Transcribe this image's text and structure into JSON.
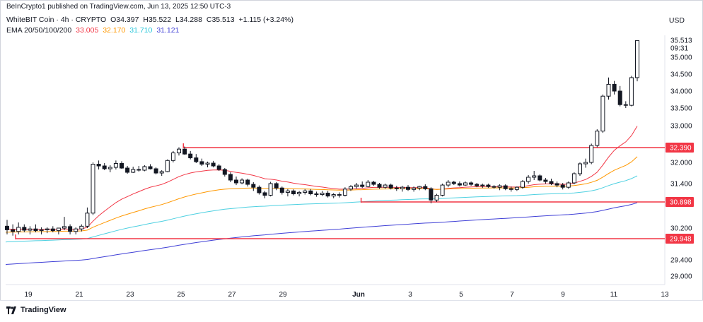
{
  "publisher_line": "BeInCrypto1 published on TradingView.com, Jun 13, 2025 12:50 UTC-3",
  "symbol": {
    "name": "WhiteBIT Coin · 4h · CRYPTO",
    "open": "O34.397",
    "high": "H35.522",
    "low": "L34.288",
    "close": "C35.513",
    "change": "+1.115 (+3.24%)"
  },
  "ema": {
    "label": "EMA 20/50/100/200",
    "values": [
      "33.005",
      "32.170",
      "31.710",
      "31.121"
    ],
    "colors": [
      "#f23645",
      "#ff9800",
      "#4dd0e1",
      "#3f3fd6"
    ]
  },
  "currency": "USD",
  "footer_brand": "TradingView",
  "chart_data": {
    "type": "candlestick",
    "y_axis_ticks": [
      "35.000",
      "34.500",
      "34.000",
      "33.500",
      "33.000",
      "32.000",
      "31.400",
      "30.200",
      "29.400",
      "29.000"
    ],
    "x_axis_ticks": [
      {
        "label": "19",
        "t": 0.5
      },
      {
        "label": "21",
        "t": 2.5
      },
      {
        "label": "23",
        "t": 4.5
      },
      {
        "label": "25",
        "t": 6.5
      },
      {
        "label": "27",
        "t": 8.5
      },
      {
        "label": "29",
        "t": 10.5
      },
      {
        "label": "Jun",
        "t": 13.5
      },
      {
        "label": "3",
        "t": 15.5
      },
      {
        "label": "5",
        "t": 17.5
      },
      {
        "label": "7",
        "t": 19.5
      },
      {
        "label": "9",
        "t": 21.5
      },
      {
        "label": "11",
        "t": 23.5
      },
      {
        "label": "13",
        "t": 25.5
      }
    ],
    "last_price": {
      "value": "35.513",
      "countdown": "09:31"
    },
    "horizontal_levels": [
      {
        "value": 32.39,
        "label": "32.390",
        "t_start": 7.45
      },
      {
        "value": 30.898,
        "label": "30.898",
        "t_start": 14.5
      },
      {
        "value": 29.948,
        "label": "29.948",
        "t_start": 0.0
      }
    ],
    "candles": [
      {
        "o": 30.25,
        "h": 30.42,
        "l": 30.05,
        "c": 30.16
      },
      {
        "o": 30.16,
        "h": 30.3,
        "l": 30.02,
        "c": 30.12
      },
      {
        "o": 30.12,
        "h": 30.35,
        "l": 30.05,
        "c": 30.22
      },
      {
        "o": 30.22,
        "h": 30.3,
        "l": 30.1,
        "c": 30.15
      },
      {
        "o": 30.15,
        "h": 30.25,
        "l": 30.05,
        "c": 30.18
      },
      {
        "o": 30.18,
        "h": 30.3,
        "l": 30.1,
        "c": 30.14
      },
      {
        "o": 30.14,
        "h": 30.22,
        "l": 30.05,
        "c": 30.16
      },
      {
        "o": 30.16,
        "h": 30.22,
        "l": 30.08,
        "c": 30.18
      },
      {
        "o": 30.18,
        "h": 30.25,
        "l": 30.1,
        "c": 30.14
      },
      {
        "o": 30.14,
        "h": 30.2,
        "l": 30.05,
        "c": 30.2
      },
      {
        "o": 30.2,
        "h": 30.5,
        "l": 30.15,
        "c": 30.24
      },
      {
        "o": 30.24,
        "h": 30.3,
        "l": 30.05,
        "c": 30.12
      },
      {
        "o": 30.12,
        "h": 30.22,
        "l": 30.05,
        "c": 30.18
      },
      {
        "o": 30.18,
        "h": 30.3,
        "l": 30.12,
        "c": 30.25
      },
      {
        "o": 30.25,
        "h": 30.75,
        "l": 30.2,
        "c": 30.6
      },
      {
        "o": 30.6,
        "h": 32.0,
        "l": 30.55,
        "c": 31.95
      },
      {
        "o": 31.95,
        "h": 32.05,
        "l": 31.8,
        "c": 31.9
      },
      {
        "o": 31.9,
        "h": 31.98,
        "l": 31.78,
        "c": 31.82
      },
      {
        "o": 31.82,
        "h": 31.92,
        "l": 31.72,
        "c": 31.86
      },
      {
        "o": 31.86,
        "h": 32.05,
        "l": 31.8,
        "c": 31.97
      },
      {
        "o": 31.97,
        "h": 32.03,
        "l": 31.82,
        "c": 31.84
      },
      {
        "o": 31.84,
        "h": 31.9,
        "l": 31.68,
        "c": 31.72
      },
      {
        "o": 31.72,
        "h": 31.88,
        "l": 31.7,
        "c": 31.8
      },
      {
        "o": 31.8,
        "h": 31.9,
        "l": 31.74,
        "c": 31.78
      },
      {
        "o": 31.78,
        "h": 31.92,
        "l": 31.75,
        "c": 31.88
      },
      {
        "o": 31.88,
        "h": 31.95,
        "l": 31.8,
        "c": 31.82
      },
      {
        "o": 31.82,
        "h": 31.86,
        "l": 31.66,
        "c": 31.7
      },
      {
        "o": 31.7,
        "h": 31.78,
        "l": 31.62,
        "c": 31.74
      },
      {
        "o": 31.74,
        "h": 32.08,
        "l": 31.72,
        "c": 32.05
      },
      {
        "o": 32.05,
        "h": 32.3,
        "l": 32.0,
        "c": 32.25
      },
      {
        "o": 32.25,
        "h": 32.4,
        "l": 32.18,
        "c": 32.35
      },
      {
        "o": 32.35,
        "h": 32.42,
        "l": 32.2,
        "c": 32.22
      },
      {
        "o": 32.22,
        "h": 32.3,
        "l": 32.08,
        "c": 32.12
      },
      {
        "o": 32.12,
        "h": 32.22,
        "l": 31.98,
        "c": 32.02
      },
      {
        "o": 32.02,
        "h": 32.1,
        "l": 31.9,
        "c": 31.95
      },
      {
        "o": 31.95,
        "h": 32.02,
        "l": 31.86,
        "c": 31.98
      },
      {
        "o": 31.98,
        "h": 32.04,
        "l": 31.86,
        "c": 31.9
      },
      {
        "o": 31.9,
        "h": 31.95,
        "l": 31.76,
        "c": 31.8
      },
      {
        "o": 31.8,
        "h": 31.84,
        "l": 31.6,
        "c": 31.66
      },
      {
        "o": 31.66,
        "h": 31.72,
        "l": 31.44,
        "c": 31.5
      },
      {
        "o": 31.5,
        "h": 31.6,
        "l": 31.36,
        "c": 31.42
      },
      {
        "o": 31.42,
        "h": 31.55,
        "l": 31.38,
        "c": 31.5
      },
      {
        "o": 31.5,
        "h": 31.54,
        "l": 31.32,
        "c": 31.38
      },
      {
        "o": 31.38,
        "h": 31.44,
        "l": 31.2,
        "c": 31.3
      },
      {
        "o": 31.3,
        "h": 31.35,
        "l": 31.1,
        "c": 31.15
      },
      {
        "o": 31.15,
        "h": 31.2,
        "l": 31.0,
        "c": 31.08
      },
      {
        "o": 31.08,
        "h": 31.45,
        "l": 31.05,
        "c": 31.4
      },
      {
        "o": 31.4,
        "h": 31.44,
        "l": 31.22,
        "c": 31.28
      },
      {
        "o": 31.28,
        "h": 31.32,
        "l": 31.1,
        "c": 31.16
      },
      {
        "o": 31.16,
        "h": 31.25,
        "l": 31.05,
        "c": 31.2
      },
      {
        "o": 31.2,
        "h": 31.24,
        "l": 31.08,
        "c": 31.12
      },
      {
        "o": 31.12,
        "h": 31.2,
        "l": 31.05,
        "c": 31.16
      },
      {
        "o": 31.16,
        "h": 31.25,
        "l": 31.1,
        "c": 31.2
      },
      {
        "o": 31.2,
        "h": 31.25,
        "l": 31.08,
        "c": 31.12
      },
      {
        "o": 31.12,
        "h": 31.18,
        "l": 31.04,
        "c": 31.1
      },
      {
        "o": 31.1,
        "h": 31.2,
        "l": 31.06,
        "c": 31.14
      },
      {
        "o": 31.14,
        "h": 31.2,
        "l": 31.02,
        "c": 31.06
      },
      {
        "o": 31.06,
        "h": 31.14,
        "l": 31.0,
        "c": 31.1
      },
      {
        "o": 31.1,
        "h": 31.16,
        "l": 31.02,
        "c": 31.08
      },
      {
        "o": 31.08,
        "h": 31.3,
        "l": 31.05,
        "c": 31.25
      },
      {
        "o": 31.25,
        "h": 31.36,
        "l": 31.2,
        "c": 31.32
      },
      {
        "o": 31.32,
        "h": 31.42,
        "l": 31.26,
        "c": 31.36
      },
      {
        "o": 31.36,
        "h": 31.46,
        "l": 31.28,
        "c": 31.32
      },
      {
        "o": 31.32,
        "h": 31.5,
        "l": 31.3,
        "c": 31.44
      },
      {
        "o": 31.44,
        "h": 31.48,
        "l": 31.34,
        "c": 31.38
      },
      {
        "o": 31.38,
        "h": 31.42,
        "l": 31.26,
        "c": 31.3
      },
      {
        "o": 31.3,
        "h": 31.4,
        "l": 31.26,
        "c": 31.36
      },
      {
        "o": 31.36,
        "h": 31.4,
        "l": 31.24,
        "c": 31.28
      },
      {
        "o": 31.28,
        "h": 31.34,
        "l": 31.2,
        "c": 31.26
      },
      {
        "o": 31.26,
        "h": 31.34,
        "l": 31.18,
        "c": 31.3
      },
      {
        "o": 31.3,
        "h": 31.36,
        "l": 31.2,
        "c": 31.24
      },
      {
        "o": 31.24,
        "h": 31.32,
        "l": 31.18,
        "c": 31.28
      },
      {
        "o": 31.28,
        "h": 31.34,
        "l": 31.22,
        "c": 31.32
      },
      {
        "o": 31.32,
        "h": 31.38,
        "l": 31.22,
        "c": 31.26
      },
      {
        "o": 31.26,
        "h": 31.3,
        "l": 30.86,
        "c": 30.95
      },
      {
        "o": 30.95,
        "h": 31.12,
        "l": 30.9,
        "c": 31.08
      },
      {
        "o": 31.08,
        "h": 31.4,
        "l": 31.05,
        "c": 31.36
      },
      {
        "o": 31.36,
        "h": 31.5,
        "l": 31.3,
        "c": 31.44
      },
      {
        "o": 31.44,
        "h": 31.48,
        "l": 31.36,
        "c": 31.4
      },
      {
        "o": 31.4,
        "h": 31.46,
        "l": 31.32,
        "c": 31.36
      },
      {
        "o": 31.36,
        "h": 31.46,
        "l": 31.34,
        "c": 31.42
      },
      {
        "o": 31.42,
        "h": 31.46,
        "l": 31.34,
        "c": 31.38
      },
      {
        "o": 31.38,
        "h": 31.42,
        "l": 31.3,
        "c": 31.34
      },
      {
        "o": 31.34,
        "h": 31.4,
        "l": 31.28,
        "c": 31.36
      },
      {
        "o": 31.36,
        "h": 31.4,
        "l": 31.28,
        "c": 31.32
      },
      {
        "o": 31.32,
        "h": 31.36,
        "l": 31.26,
        "c": 31.3
      },
      {
        "o": 31.3,
        "h": 31.38,
        "l": 31.22,
        "c": 31.34
      },
      {
        "o": 31.34,
        "h": 31.38,
        "l": 31.22,
        "c": 31.26
      },
      {
        "o": 31.26,
        "h": 31.32,
        "l": 31.18,
        "c": 31.24
      },
      {
        "o": 31.24,
        "h": 31.32,
        "l": 31.2,
        "c": 31.3
      },
      {
        "o": 31.3,
        "h": 31.5,
        "l": 31.26,
        "c": 31.46
      },
      {
        "o": 31.46,
        "h": 31.64,
        "l": 31.4,
        "c": 31.58
      },
      {
        "o": 31.58,
        "h": 31.76,
        "l": 31.5,
        "c": 31.62
      },
      {
        "o": 31.62,
        "h": 31.66,
        "l": 31.46,
        "c": 31.5
      },
      {
        "o": 31.5,
        "h": 31.56,
        "l": 31.4,
        "c": 31.46
      },
      {
        "o": 31.46,
        "h": 31.54,
        "l": 31.36,
        "c": 31.4
      },
      {
        "o": 31.4,
        "h": 31.46,
        "l": 31.3,
        "c": 31.36
      },
      {
        "o": 31.36,
        "h": 31.42,
        "l": 31.24,
        "c": 31.3
      },
      {
        "o": 31.3,
        "h": 31.46,
        "l": 31.26,
        "c": 31.42
      },
      {
        "o": 31.42,
        "h": 31.72,
        "l": 31.38,
        "c": 31.68
      },
      {
        "o": 31.68,
        "h": 32.0,
        "l": 31.62,
        "c": 31.96
      },
      {
        "o": 31.96,
        "h": 32.1,
        "l": 31.85,
        "c": 32.0
      },
      {
        "o": 32.0,
        "h": 32.5,
        "l": 31.95,
        "c": 32.45
      },
      {
        "o": 32.45,
        "h": 32.9,
        "l": 32.4,
        "c": 32.85
      },
      {
        "o": 32.85,
        "h": 33.9,
        "l": 32.8,
        "c": 33.85
      },
      {
        "o": 33.85,
        "h": 34.4,
        "l": 33.75,
        "c": 34.2
      },
      {
        "o": 34.2,
        "h": 34.3,
        "l": 33.9,
        "c": 34.0
      },
      {
        "o": 34.0,
        "h": 34.15,
        "l": 33.55,
        "c": 33.6
      },
      {
        "o": 33.6,
        "h": 33.7,
        "l": 33.5,
        "c": 33.58
      },
      {
        "o": 33.58,
        "h": 34.45,
        "l": 33.55,
        "c": 34.397
      },
      {
        "o": 34.397,
        "h": 35.522,
        "l": 34.288,
        "c": 35.513
      }
    ]
  }
}
